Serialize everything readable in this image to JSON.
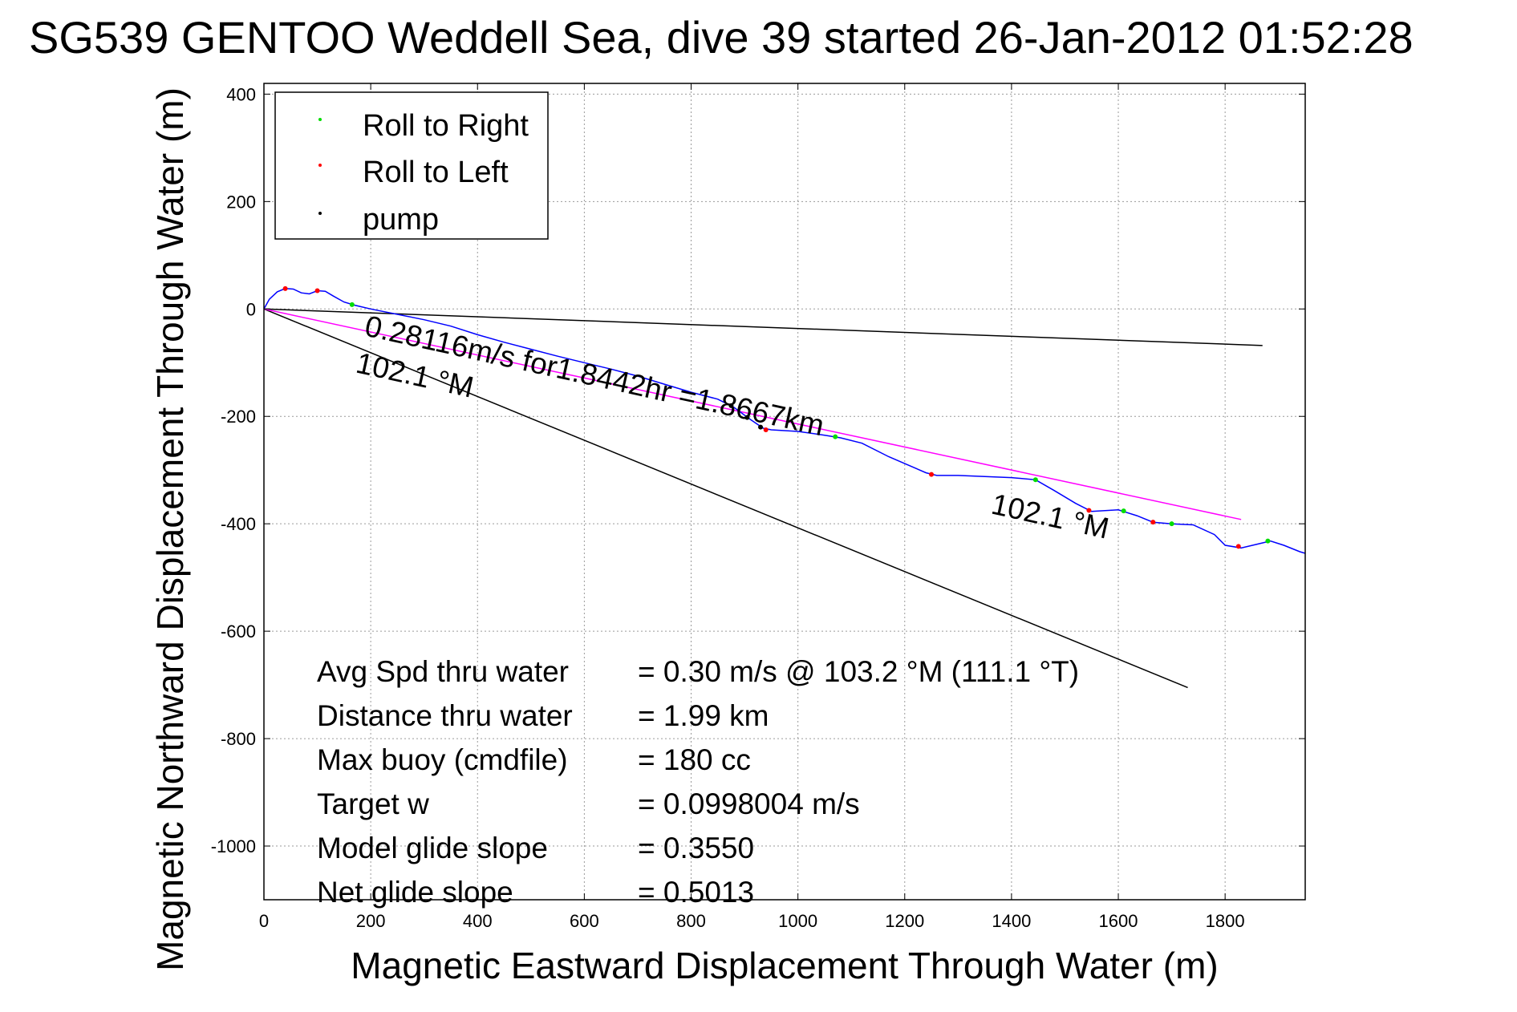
{
  "chart_data": {
    "type": "line",
    "title": "SG539 GENTOO Weddell Sea, dive 39 started 26-Jan-2012 01:52:28",
    "xlabel": "Magnetic Eastward Displacement Through Water (m)",
    "ylabel": "Magnetic Northward Displacement Through Water (m)",
    "xlim": [
      0,
      1950
    ],
    "ylim": [
      -1100,
      420
    ],
    "xticks": [
      0,
      200,
      400,
      600,
      800,
      1000,
      1200,
      1400,
      1600,
      1800
    ],
    "yticks": [
      400,
      200,
      0,
      -200,
      -400,
      -600,
      -800,
      -1000
    ],
    "grid": true,
    "legend_position": "top-left",
    "legend": [
      {
        "label": "Roll to Right",
        "color": "#00dd00"
      },
      {
        "label": "Roll to Left",
        "color": "#ff0000"
      },
      {
        "label": "pump",
        "color": "#000000"
      }
    ],
    "colors": {
      "track": "#0000ff",
      "magenta": "#ff00ff",
      "black": "#000000",
      "right": "#00dd00",
      "left": "#ff0000"
    },
    "track": [
      [
        0,
        0
      ],
      [
        10,
        18
      ],
      [
        25,
        32
      ],
      [
        40,
        38
      ],
      [
        55,
        37
      ],
      [
        70,
        30
      ],
      [
        85,
        28
      ],
      [
        100,
        34
      ],
      [
        115,
        33
      ],
      [
        130,
        24
      ],
      [
        150,
        13
      ],
      [
        170,
        7
      ],
      [
        200,
        0
      ],
      [
        250,
        -10
      ],
      [
        300,
        -20
      ],
      [
        350,
        -32
      ],
      [
        400,
        -48
      ],
      [
        450,
        -62
      ],
      [
        500,
        -75
      ],
      [
        550,
        -88
      ],
      [
        600,
        -100
      ],
      [
        650,
        -112
      ],
      [
        700,
        -125
      ],
      [
        750,
        -140
      ],
      [
        800,
        -155
      ],
      [
        850,
        -168
      ],
      [
        880,
        -183
      ],
      [
        910,
        -205
      ],
      [
        935,
        -222
      ],
      [
        950,
        -225
      ],
      [
        1000,
        -228
      ],
      [
        1050,
        -235
      ],
      [
        1080,
        -240
      ],
      [
        1120,
        -250
      ],
      [
        1170,
        -275
      ],
      [
        1210,
        -292
      ],
      [
        1240,
        -305
      ],
      [
        1260,
        -310
      ],
      [
        1300,
        -310
      ],
      [
        1350,
        -312
      ],
      [
        1400,
        -314
      ],
      [
        1445,
        -318
      ],
      [
        1480,
        -338
      ],
      [
        1520,
        -362
      ],
      [
        1550,
        -377
      ],
      [
        1600,
        -374
      ],
      [
        1635,
        -385
      ],
      [
        1665,
        -397
      ],
      [
        1700,
        -400
      ],
      [
        1740,
        -402
      ],
      [
        1780,
        -420
      ],
      [
        1800,
        -440
      ],
      [
        1830,
        -445
      ],
      [
        1860,
        -438
      ],
      [
        1885,
        -432
      ],
      [
        1910,
        -440
      ],
      [
        1940,
        -452
      ],
      [
        1950,
        -455
      ]
    ],
    "roll_right": [
      [
        165,
        8
      ],
      [
        1070,
        -238
      ],
      [
        1445,
        -318
      ],
      [
        1610,
        -376
      ],
      [
        1700,
        -400
      ],
      [
        1880,
        -432
      ]
    ],
    "roll_left": [
      [
        40,
        38
      ],
      [
        100,
        34
      ],
      [
        940,
        -225
      ],
      [
        1250,
        -308
      ],
      [
        1545,
        -375
      ],
      [
        1665,
        -397
      ],
      [
        1825,
        -442
      ]
    ],
    "pump": [
      [
        875,
        -180
      ],
      [
        905,
        -202
      ],
      [
        930,
        -220
      ]
    ],
    "lines": [
      {
        "name": "black-upper",
        "from": [
          0,
          0
        ],
        "to": [
          1870,
          -68
        ],
        "color": "#000000"
      },
      {
        "name": "black-lower",
        "from": [
          0,
          0
        ],
        "to": [
          1730,
          -705
        ],
        "color": "#000000"
      },
      {
        "name": "magenta",
        "from": [
          0,
          0
        ],
        "to": [
          1830,
          -392
        ],
        "color": "#ff00ff"
      }
    ],
    "annotations": {
      "speed": "0.28116m/s for1.8442hr =1.8667km",
      "heading1": "102.1 °M",
      "heading2": "102.1 °M"
    },
    "stats": [
      {
        "label": "Avg Spd thru water",
        "value": "=  0.30 m/s @ 103.2 °M (111.1 °T)"
      },
      {
        "label": "Distance thru water",
        "value": "=  1.99 km"
      },
      {
        "label": "Max buoy (cmdfile)",
        "value": "= 180 cc"
      },
      {
        "label": "Target w",
        "value": "= 0.0998004 m/s"
      },
      {
        "label": "Model glide slope",
        "value": "= 0.3550"
      },
      {
        "label": "Net glide slope",
        "value": "= 0.5013"
      }
    ]
  }
}
